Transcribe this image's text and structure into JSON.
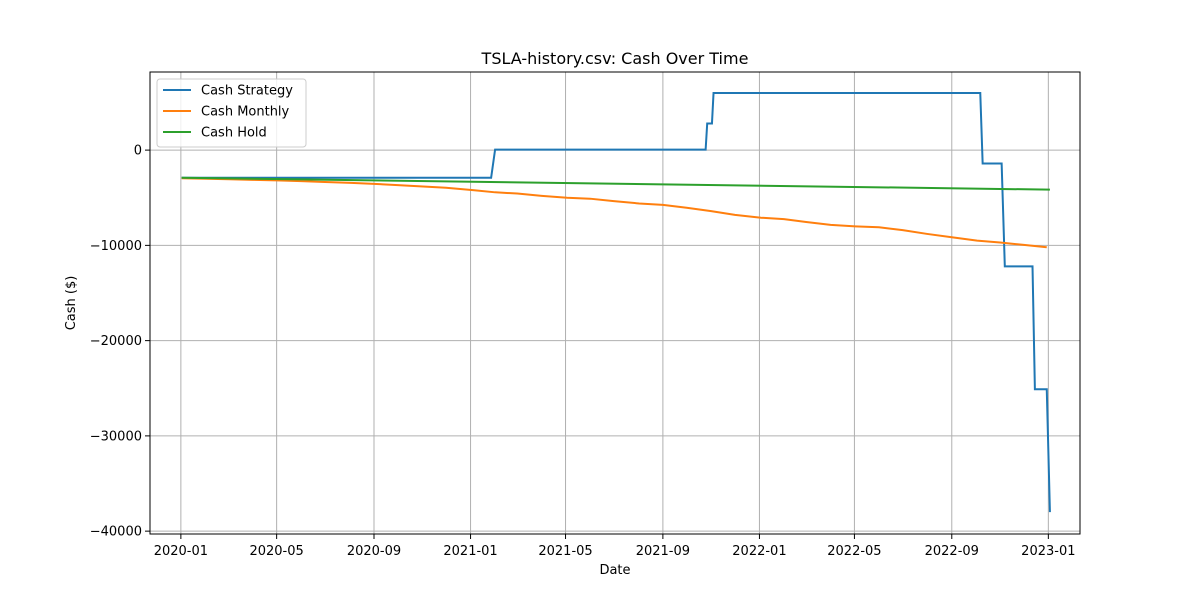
{
  "chart_data": {
    "type": "line",
    "title": "TSLA-history.csv: Cash Over Time",
    "xlabel": "Date",
    "ylabel": "Cash ($)",
    "x_type": "date",
    "xlim": [
      "2019-11-23",
      "2023-02-10"
    ],
    "ylim": [
      -40300,
      8200
    ],
    "x_ticks": [
      "2020-01",
      "2020-05",
      "2020-09",
      "2021-01",
      "2021-05",
      "2021-09",
      "2022-01",
      "2022-05",
      "2022-09",
      "2023-01"
    ],
    "y_ticks": [
      0,
      -10000,
      -20000,
      -30000,
      -40000
    ],
    "y_tick_labels": [
      "0",
      "−10000",
      "−20000",
      "−30000",
      "−40000"
    ],
    "grid": true,
    "legend_position": "top-left",
    "series": [
      {
        "name": "Cash Strategy",
        "color": "#1f77b4",
        "step": true,
        "points": [
          [
            "2020-01-02",
            -2900
          ],
          [
            "2021-01-27",
            -2900
          ],
          [
            "2021-02-01",
            50
          ],
          [
            "2021-10-25",
            50
          ],
          [
            "2021-10-27",
            2800
          ],
          [
            "2021-11-02",
            2800
          ],
          [
            "2021-11-04",
            6000
          ],
          [
            "2022-10-07",
            6000
          ],
          [
            "2022-10-10",
            -1400
          ],
          [
            "2022-11-03",
            -1400
          ],
          [
            "2022-11-07",
            -12200
          ],
          [
            "2022-12-12",
            -12200
          ],
          [
            "2022-12-15",
            -25100
          ],
          [
            "2022-12-30",
            -25100
          ],
          [
            "2023-01-03",
            -38000
          ]
        ]
      },
      {
        "name": "Cash Monthly",
        "color": "#ff7f0e",
        "step": true,
        "points": [
          [
            "2020-01-02",
            -2950
          ],
          [
            "2020-02-03",
            -3000
          ],
          [
            "2020-03-02",
            -3060
          ],
          [
            "2020-04-01",
            -3120
          ],
          [
            "2020-05-01",
            -3180
          ],
          [
            "2020-06-01",
            -3260
          ],
          [
            "2020-07-01",
            -3350
          ],
          [
            "2020-08-03",
            -3440
          ],
          [
            "2020-09-01",
            -3540
          ],
          [
            "2020-10-01",
            -3680
          ],
          [
            "2020-11-02",
            -3820
          ],
          [
            "2020-12-01",
            -3950
          ],
          [
            "2021-01-04",
            -4200
          ],
          [
            "2021-02-01",
            -4430
          ],
          [
            "2021-03-01",
            -4560
          ],
          [
            "2021-04-01",
            -4800
          ],
          [
            "2021-05-03",
            -5000
          ],
          [
            "2021-06-01",
            -5100
          ],
          [
            "2021-07-01",
            -5350
          ],
          [
            "2021-08-02",
            -5600
          ],
          [
            "2021-09-01",
            -5750
          ],
          [
            "2021-10-01",
            -6050
          ],
          [
            "2021-11-01",
            -6400
          ],
          [
            "2021-12-01",
            -6800
          ],
          [
            "2022-01-03",
            -7100
          ],
          [
            "2022-02-01",
            -7250
          ],
          [
            "2022-03-01",
            -7550
          ],
          [
            "2022-04-01",
            -7850
          ],
          [
            "2022-05-02",
            -8000
          ],
          [
            "2022-06-01",
            -8100
          ],
          [
            "2022-07-01",
            -8400
          ],
          [
            "2022-08-01",
            -8800
          ],
          [
            "2022-09-01",
            -9150
          ],
          [
            "2022-10-03",
            -9500
          ],
          [
            "2022-11-01",
            -9700
          ],
          [
            "2022-12-01",
            -9950
          ],
          [
            "2022-12-30",
            -10200
          ]
        ]
      },
      {
        "name": "Cash Hold",
        "color": "#2ca02c",
        "step": false,
        "points": [
          [
            "2020-01-02",
            -2900
          ],
          [
            "2023-01-03",
            -4150
          ]
        ]
      }
    ]
  }
}
